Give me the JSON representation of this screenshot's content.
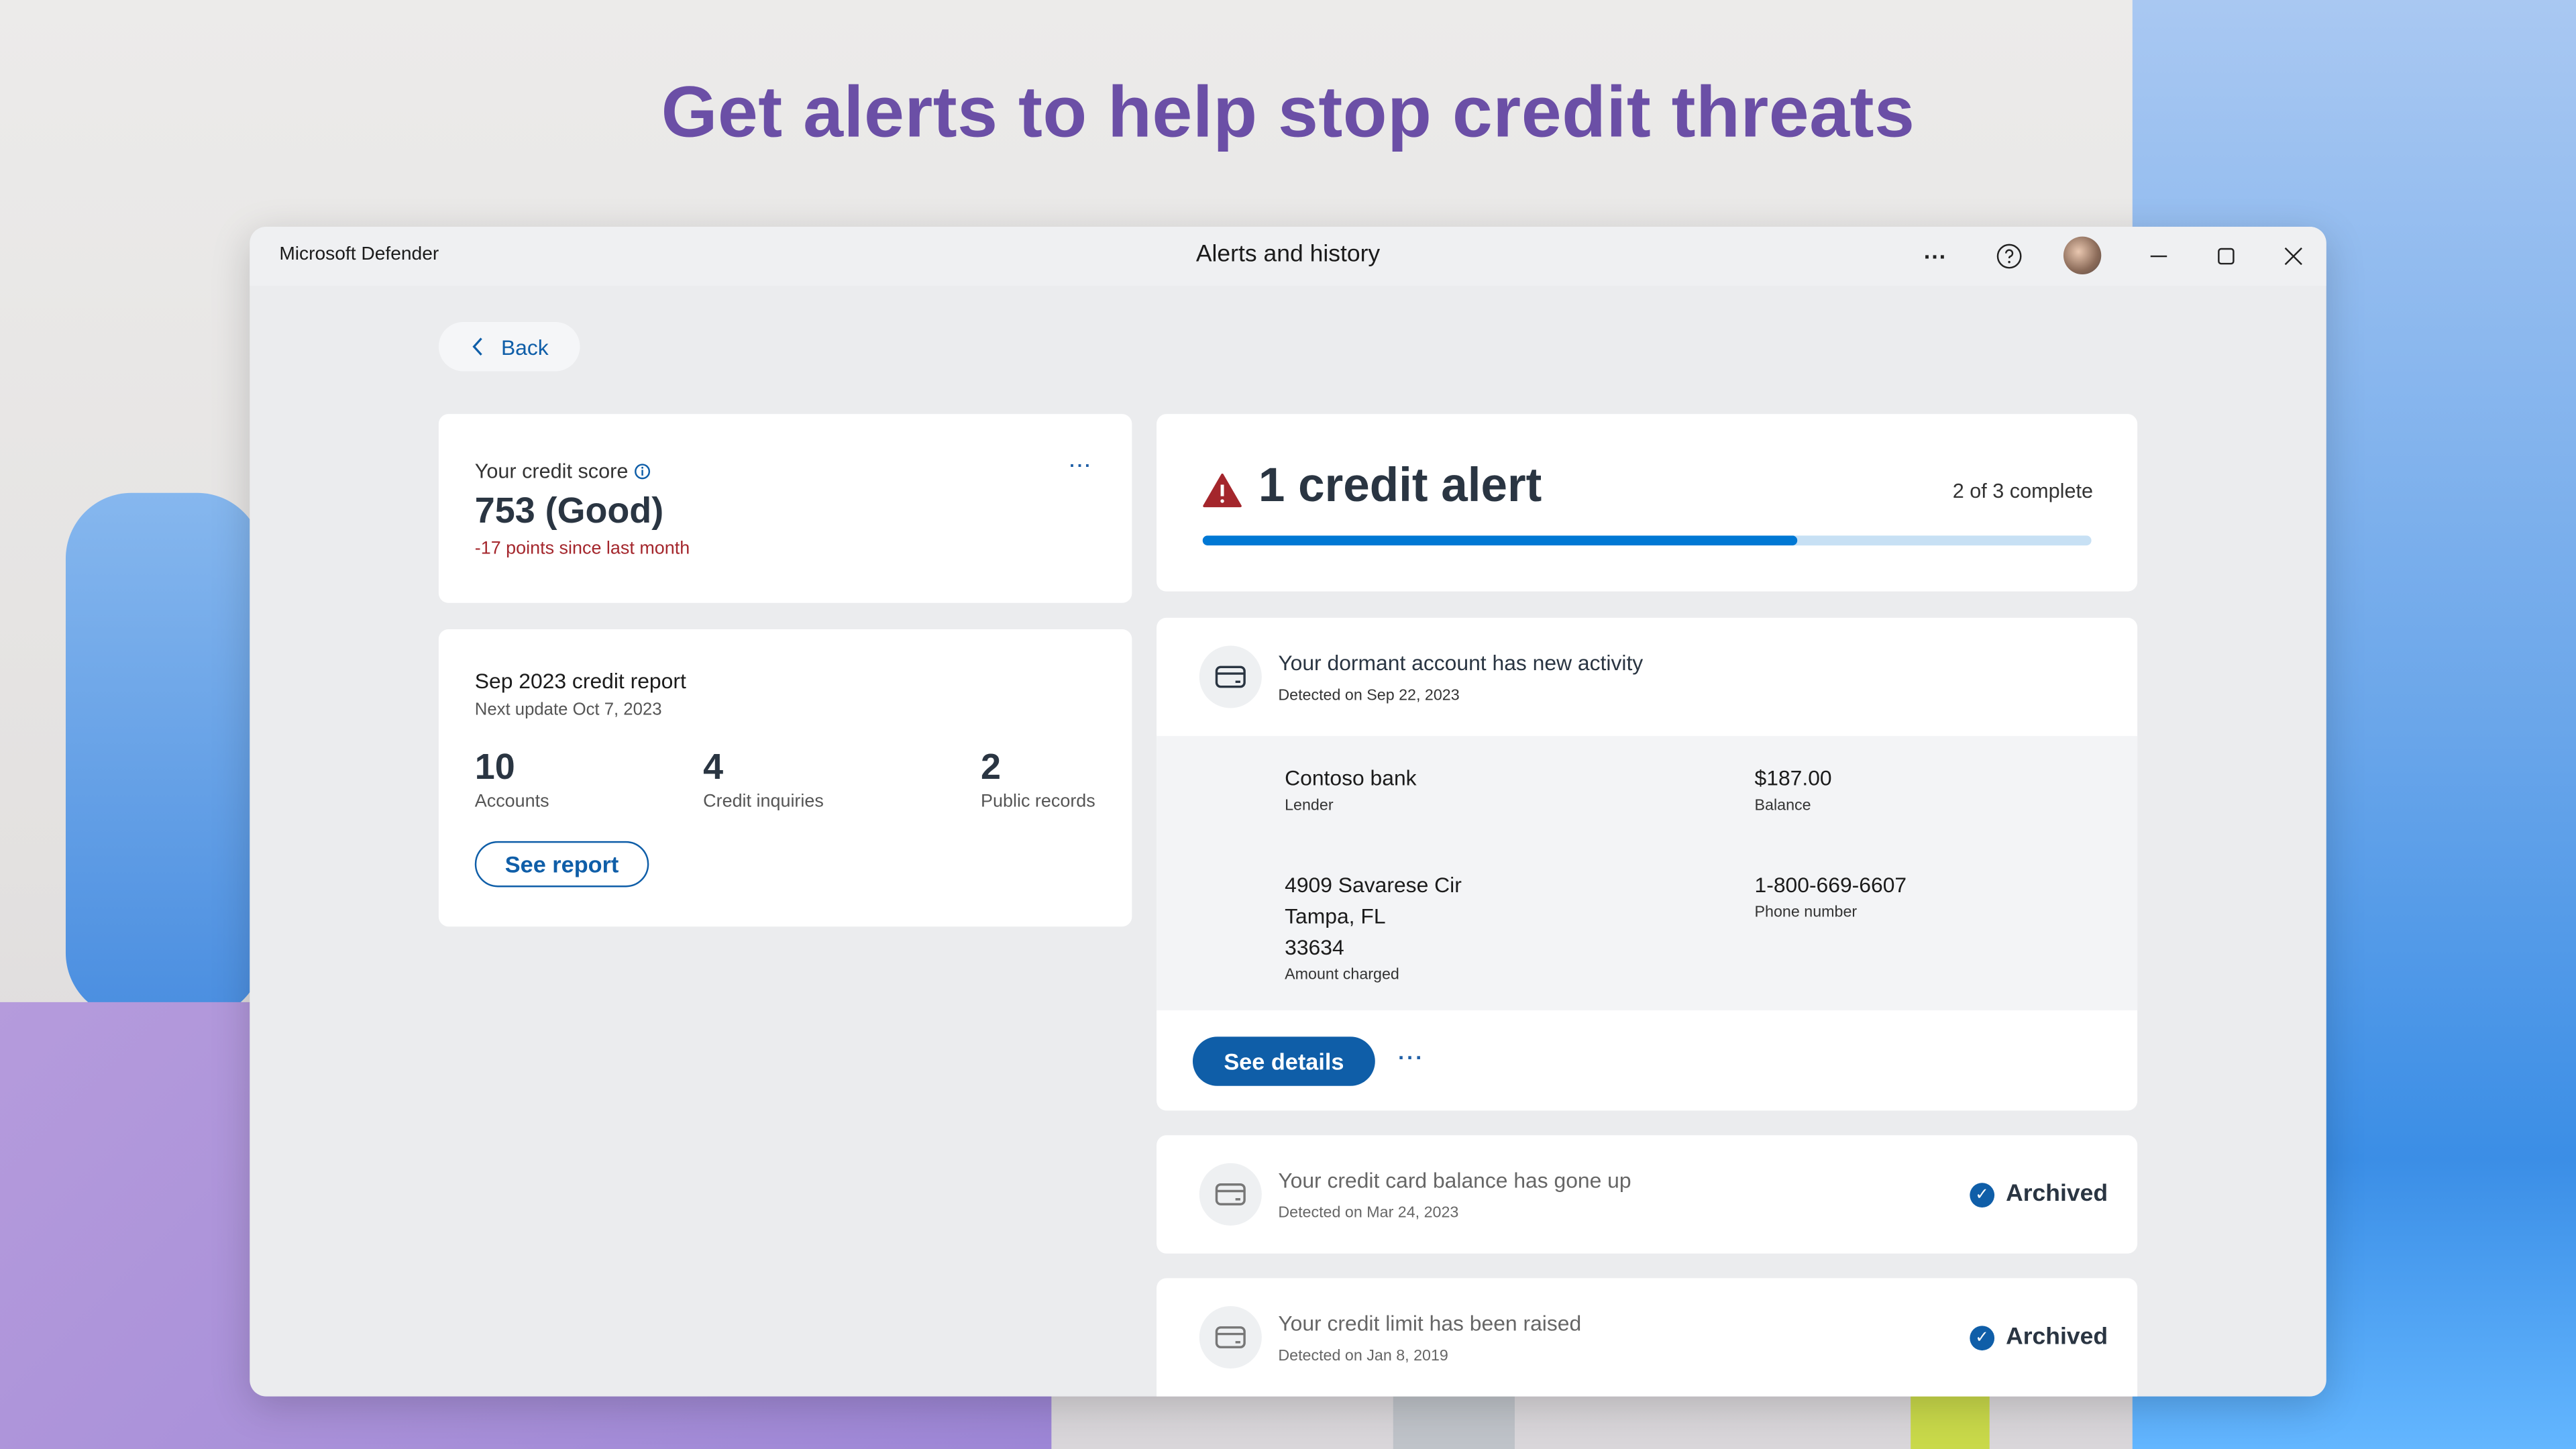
{
  "headline": "Get alerts to help stop credit threats",
  "window": {
    "app_name": "Microsoft Defender",
    "title": "Alerts and history",
    "more_icon": "more-horizontal-icon",
    "help_icon": "help-circle-icon",
    "minimize_icon": "minimize-icon",
    "maximize_icon": "maximize-icon",
    "close_icon": "close-icon"
  },
  "back": {
    "label": "Back",
    "icon": "chevron-left-icon"
  },
  "score_card": {
    "label": "Your credit score",
    "score": "753 (Good)",
    "change": "-17 points since last month",
    "change_color": "#a4262c"
  },
  "report_card": {
    "title": "Sep 2023 credit report",
    "next_update": "Next update Oct 7, 2023",
    "stats": [
      {
        "value": "10",
        "label": "Accounts"
      },
      {
        "value": "4",
        "label": "Credit inquiries"
      },
      {
        "value": "2",
        "label": "Public records"
      }
    ],
    "button": "See report"
  },
  "alert_summary": {
    "title": "1 credit alert",
    "progress_text": "2 of 3 complete",
    "progress": 0.67,
    "accent": "#0078d4",
    "warning_color": "#a4262c"
  },
  "active_alert": {
    "title": "Your dormant account has new activity",
    "detected": "Detected on Sep 22, 2023",
    "details": [
      {
        "value": "Contoso bank",
        "label": "Lender"
      },
      {
        "value": "$187.00",
        "label": "Balance"
      },
      {
        "value_lines": [
          "4909 Savarese Cir",
          "Tampa, FL",
          "33634"
        ],
        "label": "Amount charged"
      },
      {
        "value": "1-800-669-6607",
        "label": "Phone number"
      }
    ],
    "button": "See details"
  },
  "archived_alerts": [
    {
      "title": "Your credit card balance has gone up",
      "detected": "Detected on Mar 24, 2023",
      "status": "Archived"
    },
    {
      "title": "Your credit limit has been raised",
      "detected": "Detected on Jan 8, 2019",
      "status": "Archived"
    }
  ]
}
